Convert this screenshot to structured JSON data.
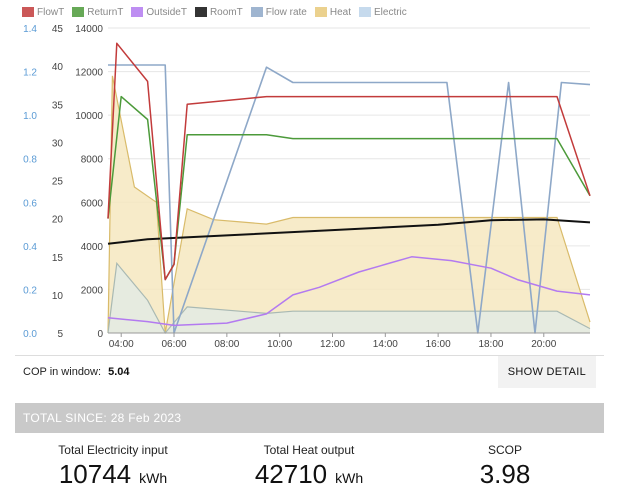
{
  "legend": [
    {
      "label": "FlowT",
      "color": "#c23b3b"
    },
    {
      "label": "ReturnT",
      "color": "#4c9a3a"
    },
    {
      "label": "OutsideT",
      "color": "#b37af0"
    },
    {
      "label": "RoomT",
      "color": "#111111"
    },
    {
      "label": "Flow rate",
      "color": "#8ea8c8"
    },
    {
      "label": "Heat",
      "color": "#e8c97a"
    },
    {
      "label": "Electric",
      "color": "#bcd4ea"
    }
  ],
  "chart_data": {
    "type": "line",
    "x_ticks": [
      "04:00",
      "06:00",
      "08:00",
      "10:00",
      "12:00",
      "14:00",
      "16:00",
      "18:00",
      "20:00"
    ],
    "x_range": [
      "03:30",
      "21:45"
    ],
    "axes": {
      "flow_rate": {
        "ticks": [
          "0.0",
          "0.2",
          "0.4",
          "0.6",
          "0.8",
          "1.0",
          "1.2",
          "1.4"
        ],
        "range": [
          0,
          1.4
        ]
      },
      "temperature": {
        "ticks": [
          "5",
          "10",
          "15",
          "20",
          "25",
          "30",
          "35",
          "40",
          "45"
        ],
        "range": [
          5,
          45
        ]
      },
      "power": {
        "ticks": [
          "0",
          "2000",
          "4000",
          "6000",
          "8000",
          "10000",
          "12000",
          "14000"
        ],
        "range": [
          0,
          14000
        ]
      }
    },
    "series": [
      {
        "name": "RoomT",
        "axis": "temperature",
        "x": [
          "03:30",
          "05:00",
          "08:00",
          "12:00",
          "16:00",
          "18:00",
          "20:00",
          "21:45"
        ],
        "values": [
          16.7,
          17.3,
          17.8,
          18.5,
          19.2,
          19.8,
          19.9,
          19.5
        ]
      },
      {
        "name": "OutsideT",
        "axis": "temperature",
        "x": [
          "03:30",
          "05:00",
          "06:00",
          "08:00",
          "09:30",
          "10:30",
          "11:30",
          "13:00",
          "14:00",
          "15:00",
          "16:30",
          "18:00",
          "19:00",
          "20:30",
          "21:45"
        ],
        "values": [
          7.0,
          6.5,
          6.0,
          6.3,
          7.5,
          10.0,
          11.0,
          13.0,
          14.0,
          15.0,
          14.5,
          13.5,
          12.0,
          10.5,
          10.0
        ]
      },
      {
        "name": "Flow rate",
        "axis": "flow_rate",
        "x": [
          "03:30",
          "05:40",
          "06:00",
          "09:30",
          "10:30",
          "11:30",
          "12:30",
          "13:20",
          "14:20",
          "15:20",
          "16:20",
          "17:30",
          "18:40",
          "19:40",
          "20:40",
          "21:45"
        ],
        "values": [
          1.23,
          1.23,
          0.0,
          1.22,
          1.15,
          1.15,
          1.15,
          1.15,
          1.15,
          1.15,
          1.15,
          0.0,
          1.15,
          0.0,
          1.15,
          1.14
        ]
      },
      {
        "name": "FlowT",
        "axis": "temperature",
        "x": [
          "03:30",
          "03:50",
          "05:00",
          "05:40",
          "06:00",
          "06:30",
          "09:30",
          "10:30",
          "11:30",
          "12:30",
          "13:30",
          "14:30",
          "15:30",
          "16:30",
          "17:30",
          "18:30",
          "19:30",
          "20:30",
          "21:45"
        ],
        "values": [
          20.0,
          43.0,
          38.0,
          12.0,
          14.0,
          35.0,
          36.0,
          36.0,
          36.0,
          36.0,
          36.0,
          36.0,
          36.0,
          36.0,
          36.0,
          36.0,
          36.0,
          36.0,
          23.0
        ]
      },
      {
        "name": "ReturnT",
        "axis": "temperature",
        "x": [
          "03:30",
          "04:00",
          "05:00",
          "05:40",
          "06:00",
          "06:30",
          "09:30",
          "10:30",
          "11:30",
          "12:30",
          "13:30",
          "14:30",
          "15:30",
          "16:30",
          "17:30",
          "18:30",
          "19:30",
          "20:30",
          "21:45"
        ],
        "values": [
          20.0,
          36.0,
          33.0,
          12.0,
          14.0,
          31.0,
          31.0,
          30.5,
          30.5,
          30.5,
          30.5,
          30.5,
          30.5,
          30.5,
          30.5,
          30.5,
          30.5,
          30.5,
          23.0
        ]
      },
      {
        "name": "Heat",
        "axis": "power",
        "x": [
          "03:30",
          "03:40",
          "04:30",
          "05:20",
          "05:40",
          "06:30",
          "07:30",
          "08:30",
          "09:30",
          "10:30",
          "11:30",
          "12:30",
          "13:30",
          "14:30",
          "15:30",
          "16:30",
          "17:30",
          "18:30",
          "19:30",
          "20:30",
          "21:45"
        ],
        "values": [
          0,
          11800,
          6700,
          6000,
          0,
          5700,
          5200,
          5100,
          5000,
          5300,
          5300,
          5300,
          5300,
          5300,
          5300,
          5300,
          5300,
          5300,
          5300,
          5300,
          500
        ]
      },
      {
        "name": "Electric",
        "axis": "power",
        "x": [
          "03:30",
          "03:50",
          "05:00",
          "05:40",
          "06:30",
          "09:30",
          "10:30",
          "12:30",
          "14:30",
          "16:30",
          "18:30",
          "20:30",
          "21:45"
        ],
        "values": [
          0,
          3200,
          1500,
          0,
          1200,
          900,
          1000,
          1000,
          1000,
          1000,
          1000,
          1000,
          200
        ]
      }
    ]
  },
  "cop": {
    "label": "COP in window:",
    "value": "5.04"
  },
  "show_detail_label": "SHOW DETAIL",
  "totals": {
    "header": "TOTAL SINCE: 28 Feb 2023",
    "electricity": {
      "label": "Total Electricity input",
      "value": "10744",
      "unit": "kWh"
    },
    "heat": {
      "label": "Total Heat output",
      "value": "42710",
      "unit": "kWh"
    },
    "scop": {
      "label": "SCOP",
      "value": "3.98"
    }
  }
}
